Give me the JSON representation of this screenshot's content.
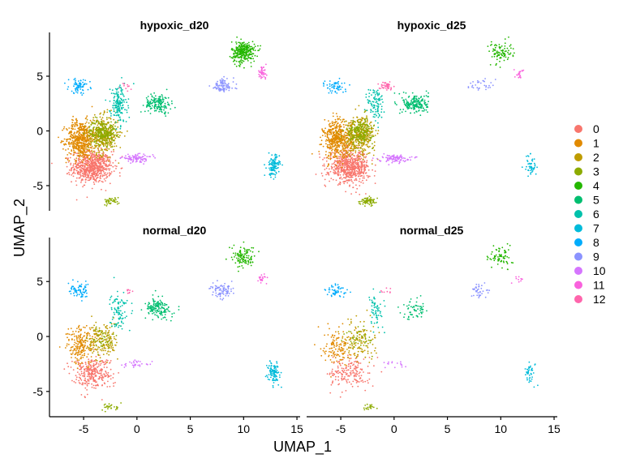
{
  "chart_data": {
    "type": "scatter",
    "xlabel": "UMAP_1",
    "ylabel": "UMAP_2",
    "xlim": [
      -8.2,
      15.3
    ],
    "ylim": [
      -7.3,
      9.0
    ],
    "x_ticks": [
      -5,
      0,
      5,
      10,
      15
    ],
    "y_ticks": [
      -5,
      0,
      5
    ],
    "legend_position": "right",
    "panels": [
      {
        "title": "hypoxic_d20"
      },
      {
        "title": "hypoxic_d25"
      },
      {
        "title": "normal_d20"
      },
      {
        "title": "normal_d25"
      }
    ],
    "clusters": [
      {
        "label": "0",
        "color": "#F8766D"
      },
      {
        "label": "1",
        "color": "#E18A00"
      },
      {
        "label": "2",
        "color": "#BE9C00"
      },
      {
        "label": "3",
        "color": "#8CAB00"
      },
      {
        "label": "4",
        "color": "#24B700"
      },
      {
        "label": "5",
        "color": "#00BE70"
      },
      {
        "label": "6",
        "color": "#00C1AB"
      },
      {
        "label": "7",
        "color": "#00BBDA"
      },
      {
        "label": "8",
        "color": "#00ACFC"
      },
      {
        "label": "9",
        "color": "#8B93FF"
      },
      {
        "label": "10",
        "color": "#D575FE"
      },
      {
        "label": "11",
        "color": "#F962DD"
      },
      {
        "label": "12",
        "color": "#FF65AC"
      }
    ],
    "cluster_regions": [
      {
        "cluster": "0",
        "center": [
          -4.2,
          -3.3
        ],
        "spread": [
          1.7,
          1.3
        ],
        "counts": [
          700,
          640,
          300,
          180
        ]
      },
      {
        "cluster": "1",
        "center": [
          -5.3,
          -0.8
        ],
        "spread": [
          1.2,
          1.6
        ],
        "counts": [
          500,
          480,
          200,
          130
        ]
      },
      {
        "cluster": "2",
        "center": [
          -3.2,
          -0.4
        ],
        "spread": [
          1.3,
          1.6
        ],
        "counts": [
          380,
          360,
          180,
          120
        ]
      },
      {
        "cluster": "3",
        "center": [
          -2.4,
          -6.4
        ],
        "spread": [
          0.7,
          0.3
        ],
        "counts": [
          40,
          70,
          25,
          20
        ]
      },
      {
        "cluster": "3",
        "center": [
          -3.2,
          -0.1
        ],
        "spread": [
          1.1,
          1.0
        ],
        "counts": [
          220,
          200,
          40,
          40
        ]
      },
      {
        "cluster": "4",
        "center": [
          10.0,
          7.2
        ],
        "spread": [
          1.0,
          0.9
        ],
        "counts": [
          300,
          90,
          110,
          70
        ]
      },
      {
        "cluster": "5",
        "center": [
          2.0,
          2.5
        ],
        "spread": [
          1.1,
          0.8
        ],
        "counts": [
          160,
          190,
          150,
          60
        ]
      },
      {
        "cluster": "6",
        "center": [
          -1.7,
          2.4
        ],
        "spread": [
          0.7,
          1.6
        ],
        "counts": [
          160,
          100,
          90,
          60
        ]
      },
      {
        "cluster": "7",
        "center": [
          12.8,
          -3.2
        ],
        "spread": [
          0.5,
          0.9
        ],
        "counts": [
          120,
          50,
          100,
          40
        ]
      },
      {
        "cluster": "8",
        "center": [
          -5.4,
          4.1
        ],
        "spread": [
          0.9,
          0.6
        ],
        "counts": [
          70,
          60,
          70,
          50
        ]
      },
      {
        "cluster": "9",
        "center": [
          8.0,
          4.1
        ],
        "spread": [
          1.0,
          0.6
        ],
        "counts": [
          90,
          30,
          80,
          40
        ]
      },
      {
        "cluster": "10",
        "center": [
          0.0,
          -2.5
        ],
        "spread": [
          1.3,
          0.3
        ],
        "counts": [
          90,
          90,
          30,
          15
        ]
      },
      {
        "cluster": "11",
        "center": [
          11.7,
          5.3
        ],
        "spread": [
          0.4,
          0.5
        ],
        "counts": [
          40,
          20,
          20,
          10
        ]
      },
      {
        "cluster": "12",
        "center": [
          -0.8,
          4.1
        ],
        "spread": [
          0.6,
          0.3
        ],
        "counts": [
          10,
          40,
          8,
          8
        ]
      }
    ]
  }
}
